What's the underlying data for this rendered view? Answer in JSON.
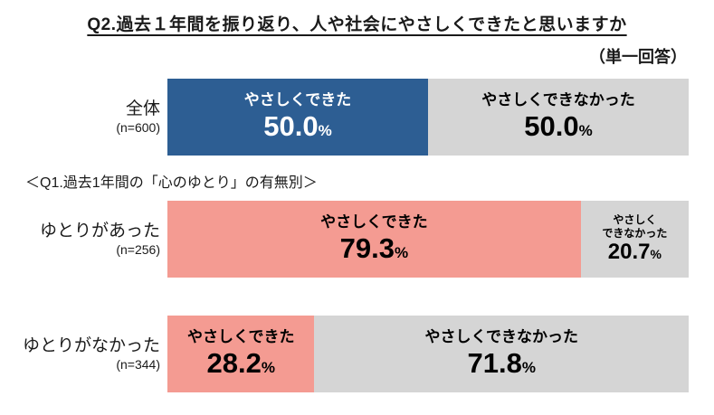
{
  "title": "Q2.過去１年間を振り返り、人や社会にやさしくできたと思いますか",
  "subtitle": "（単一回答）",
  "section_label": "＜Q1.過去1年間の「心のゆとり」の有無別＞",
  "colors": {
    "blue": "#2d5e93",
    "pink": "#f49b92",
    "gray": "#d5d5d5"
  },
  "chart_data": {
    "type": "bar",
    "orientation": "horizontal_stacked",
    "unit": "%",
    "xlim": [
      0,
      100
    ],
    "rows": [
      {
        "label": "全体",
        "n": "(n=600)",
        "segments": [
          {
            "label": "やさしくできた",
            "value": "50.0",
            "percent_sign": "%",
            "width": "50%",
            "bg": "#2d5e93",
            "fg": "#ffffff"
          },
          {
            "label": "やさしくできなかった",
            "value": "50.0",
            "percent_sign": "%",
            "width": "50%",
            "bg": "#d5d5d5",
            "fg": "#000000"
          }
        ]
      },
      {
        "label": "ゆとりがあった",
        "n": "(n=256)",
        "segments": [
          {
            "label": "やさしくできた",
            "value": "79.3",
            "percent_sign": "%",
            "width": "79.3%",
            "bg": "#f49b92",
            "fg": "#000000"
          },
          {
            "label": "やさしく\nできなかった",
            "value": "20.7",
            "percent_sign": "%",
            "width": "20.7%",
            "bg": "#d5d5d5",
            "fg": "#000000"
          }
        ]
      },
      {
        "label": "ゆとりがなかった",
        "n": "(n=344)",
        "segments": [
          {
            "label": "やさしくできた",
            "value": "28.2",
            "percent_sign": "%",
            "width": "28.2%",
            "bg": "#f49b92",
            "fg": "#000000"
          },
          {
            "label": "やさしくできなかった",
            "value": "71.8",
            "percent_sign": "%",
            "width": "71.8%",
            "bg": "#d5d5d5",
            "fg": "#000000"
          }
        ]
      }
    ]
  }
}
